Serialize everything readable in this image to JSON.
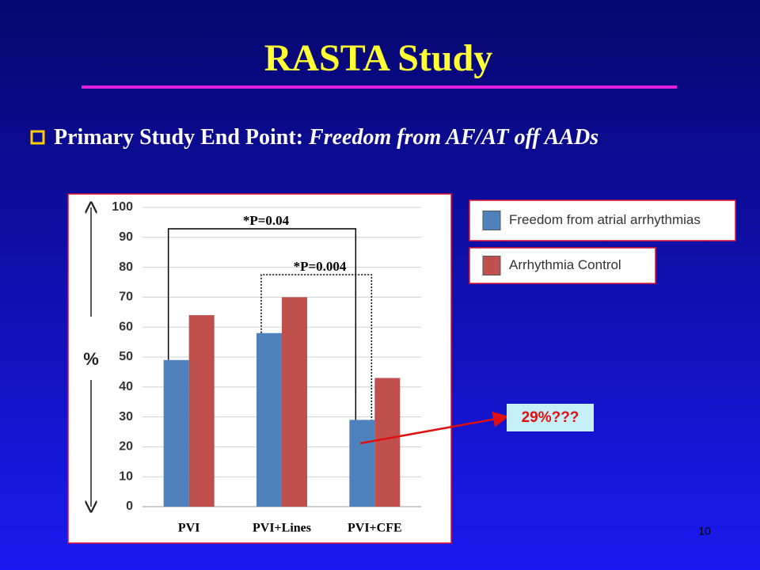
{
  "slide": {
    "title": "RASTA Study",
    "bullet_label": "Primary Study End Point:",
    "bullet_text": "Freedom from AF/AT off AADs",
    "page_number": "10"
  },
  "chart_data": {
    "type": "bar",
    "y_label": "%",
    "categories": [
      "PVI",
      "PVI+Lines",
      "PVI+CFE"
    ],
    "series": [
      {
        "name": "Freedom from atrial arrhythmias",
        "color": "#4f81bd",
        "values": [
          49,
          58,
          29
        ]
      },
      {
        "name": "Arrhythmia Control",
        "color": "#c0504d",
        "values": [
          64,
          70,
          43
        ]
      }
    ],
    "ylim": [
      0,
      100
    ],
    "yticks": [
      0,
      10,
      20,
      30,
      40,
      50,
      60,
      70,
      80,
      90,
      100
    ],
    "grid": true,
    "annotations": [
      "*P=0.04",
      "*P=0.004"
    ],
    "callout": "29%???"
  }
}
